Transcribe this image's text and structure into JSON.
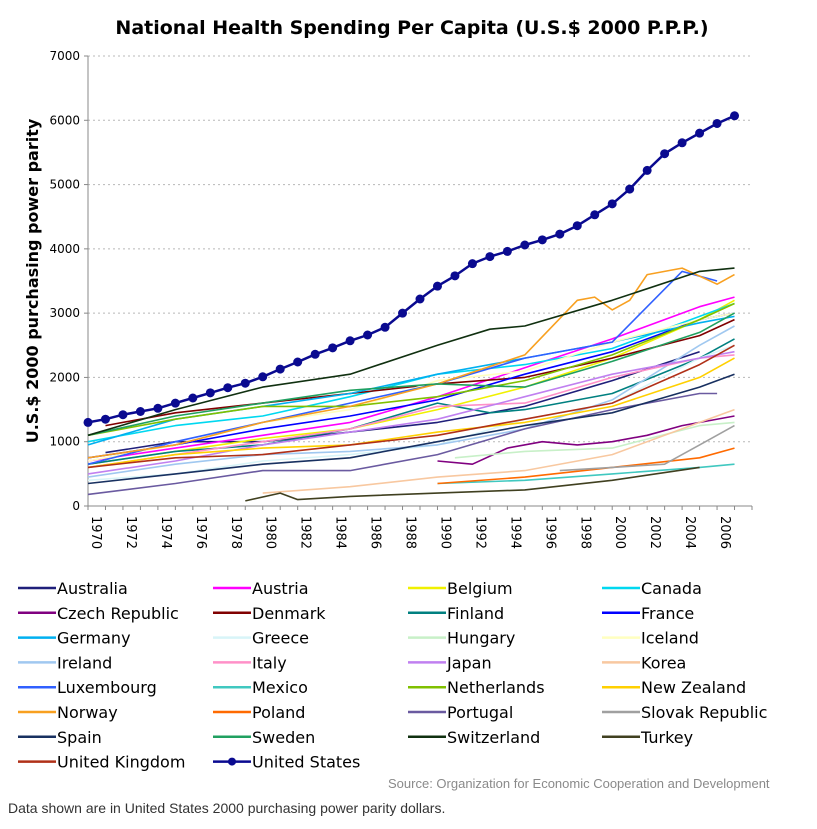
{
  "chart_data": {
    "type": "line",
    "title": "National Health Spending Per Capita (U.S.$ 2000 P.P.P.)",
    "xlabel": "",
    "ylabel": "U.S.$ 2000 purchasing power parity",
    "xlim": [
      1970,
      2008
    ],
    "ylim": [
      0,
      7000
    ],
    "yticks": [
      0,
      1000,
      2000,
      3000,
      4000,
      5000,
      6000,
      7000
    ],
    "xticks": [
      1970,
      1972,
      1974,
      1976,
      1978,
      1980,
      1982,
      1984,
      1986,
      1988,
      1990,
      1992,
      1994,
      1996,
      1998,
      2000,
      2002,
      2004,
      2006
    ],
    "grid": "horizontal dotted",
    "legend_position": "bottom",
    "series": [
      {
        "name": "Australia",
        "color": "#1f1f7a",
        "x": [
          1971,
          1975,
          1980,
          1985,
          1990,
          1995,
          2000,
          2005
        ],
        "y": [
          830,
          1000,
          1000,
          1150,
          1300,
          1550,
          1950,
          2400
        ]
      },
      {
        "name": "Austria",
        "color": "#ff00ff",
        "x": [
          1970,
          1975,
          1980,
          1985,
          1990,
          1995,
          2000,
          2005,
          2007
        ],
        "y": [
          700,
          900,
          1100,
          1300,
          1700,
          2150,
          2600,
          3100,
          3250
        ]
      },
      {
        "name": "Belgium",
        "color": "#f0f000",
        "x": [
          1970,
          1975,
          1980,
          1985,
          1990,
          1995,
          2000,
          2005,
          2007
        ],
        "y": [
          650,
          850,
          1050,
          1200,
          1500,
          1850,
          2300,
          2900,
          3200
        ]
      },
      {
        "name": "Canada",
        "color": "#00d8f0",
        "x": [
          1970,
          1975,
          1980,
          1985,
          1990,
          1995,
          2000,
          2005,
          2007
        ],
        "y": [
          1000,
          1250,
          1400,
          1700,
          2050,
          2200,
          2450,
          2950,
          3150
        ]
      },
      {
        "name": "Czech Republic",
        "color": "#800080",
        "x": [
          1990,
          1992,
          1994,
          1996,
          1998,
          2000,
          2002,
          2004,
          2007
        ],
        "y": [
          700,
          650,
          900,
          1000,
          950,
          1000,
          1100,
          1250,
          1400
        ]
      },
      {
        "name": "Denmark",
        "color": "#800000",
        "x": [
          1971,
          1975,
          1980,
          1985,
          1990,
          1995,
          2000,
          2005,
          2007
        ],
        "y": [
          1250,
          1450,
          1600,
          1750,
          1900,
          2000,
          2300,
          2650,
          2900
        ]
      },
      {
        "name": "Finland",
        "color": "#008080",
        "x": [
          1970,
          1975,
          1980,
          1985,
          1990,
          1993,
          1995,
          2000,
          2005,
          2007
        ],
        "y": [
          650,
          850,
          950,
          1200,
          1600,
          1450,
          1500,
          1750,
          2300,
          2600
        ]
      },
      {
        "name": "France",
        "color": "#0000ff",
        "x": [
          1970,
          1975,
          1980,
          1985,
          1990,
          1995,
          2000,
          2005,
          2007
        ],
        "y": [
          750,
          950,
          1200,
          1400,
          1650,
          2050,
          2400,
          2900,
          3000
        ]
      },
      {
        "name": "Germany",
        "color": "#00b0f0",
        "x": [
          1970,
          1975,
          1980,
          1985,
          1990,
          1995,
          2000,
          2005,
          2007
        ],
        "y": [
          950,
          1350,
          1550,
          1750,
          2050,
          2300,
          2550,
          2850,
          2950
        ]
      },
      {
        "name": "Greece",
        "color": "#d8f4f8",
        "x": [
          1970,
          1975,
          1980,
          1985,
          1990,
          1995,
          2000,
          2005,
          2007
        ],
        "y": [
          400,
          500,
          700,
          800,
          950,
          1350,
          1600,
          2300,
          2500
        ]
      },
      {
        "name": "Hungary",
        "color": "#c8f0c8",
        "x": [
          1991,
          1995,
          2000,
          2005,
          2007
        ],
        "y": [
          750,
          850,
          900,
          1250,
          1300
        ]
      },
      {
        "name": "Iceland",
        "color": "#ffffc0",
        "x": [
          1970,
          1975,
          1980,
          1985,
          1990,
          1995,
          2000,
          2005,
          2007
        ],
        "y": [
          700,
          950,
          1300,
          1500,
          1950,
          2100,
          2550,
          2900,
          3000
        ]
      },
      {
        "name": "Ireland",
        "color": "#a0c8f0",
        "x": [
          1970,
          1975,
          1980,
          1985,
          1990,
          1995,
          2000,
          2005,
          2007
        ],
        "y": [
          450,
          650,
          800,
          850,
          950,
          1200,
          1650,
          2500,
          2800
        ]
      },
      {
        "name": "Italy",
        "color": "#ff90c8",
        "x": [
          1970,
          1975,
          1980,
          1985,
          1990,
          1995,
          2000,
          2005,
          2007
        ],
        "y": [
          600,
          800,
          1000,
          1200,
          1550,
          1600,
          2000,
          2300,
          2350
        ]
      },
      {
        "name": "Japan",
        "color": "#c080f0",
        "x": [
          1970,
          1975,
          1980,
          1985,
          1990,
          1995,
          2000,
          2005,
          2007
        ],
        "y": [
          500,
          700,
          950,
          1150,
          1350,
          1700,
          2050,
          2300,
          2400
        ]
      },
      {
        "name": "Korea",
        "color": "#f8c8a0",
        "x": [
          1980,
          1985,
          1990,
          1995,
          2000,
          2005,
          2007
        ],
        "y": [
          200,
          300,
          450,
          550,
          800,
          1300,
          1500
        ]
      },
      {
        "name": "Luxembourg",
        "color": "#3060ff",
        "x": [
          1970,
          1975,
          1980,
          1985,
          1990,
          1995,
          2000,
          2004,
          2006
        ],
        "y": [
          650,
          1000,
          1300,
          1600,
          1900,
          2300,
          2550,
          3650,
          3500
        ]
      },
      {
        "name": "Mexico",
        "color": "#40c8c0",
        "x": [
          1990,
          1995,
          2000,
          2005,
          2007
        ],
        "y": [
          350,
          400,
          500,
          600,
          650
        ]
      },
      {
        "name": "Netherlands",
        "color": "#80c000",
        "x": [
          1970,
          1975,
          1980,
          1985,
          1990,
          1995,
          2000,
          2005,
          2007
        ],
        "y": [
          1100,
          1350,
          1550,
          1550,
          1700,
          1950,
          2350,
          2900,
          3150
        ]
      },
      {
        "name": "New Zealand",
        "color": "#ffd000",
        "x": [
          1970,
          1975,
          1980,
          1985,
          1990,
          1995,
          2000,
          2005,
          2007
        ],
        "y": [
          600,
          800,
          900,
          950,
          1150,
          1300,
          1550,
          2000,
          2300
        ]
      },
      {
        "name": "Norway",
        "color": "#f8a020",
        "x": [
          1970,
          1975,
          1980,
          1985,
          1990,
          1995,
          1998,
          1999,
          2000,
          2001,
          2002,
          2004,
          2006,
          2007
        ],
        "y": [
          750,
          950,
          1300,
          1550,
          1900,
          2350,
          3200,
          3250,
          3050,
          3200,
          3600,
          3700,
          3450,
          3600
        ]
      },
      {
        "name": "Poland",
        "color": "#ff6a00",
        "x": [
          1990,
          1995,
          2000,
          2005,
          2007
        ],
        "y": [
          350,
          450,
          600,
          750,
          900
        ]
      },
      {
        "name": "Portugal",
        "color": "#6a5aa0",
        "x": [
          1970,
          1975,
          1980,
          1985,
          1990,
          1995,
          2000,
          2005,
          2006
        ],
        "y": [
          180,
          350,
          550,
          550,
          800,
          1200,
          1500,
          1750,
          1750
        ]
      },
      {
        "name": "Slovak Republic",
        "color": "#a0a0a0",
        "x": [
          1997,
          2000,
          2003,
          2005,
          2007
        ],
        "y": [
          550,
          600,
          650,
          950,
          1250
        ]
      },
      {
        "name": "Spain",
        "color": "#183060",
        "x": [
          1970,
          1975,
          1980,
          1985,
          1990,
          1995,
          2000,
          2005,
          2007
        ],
        "y": [
          350,
          500,
          650,
          750,
          1000,
          1250,
          1450,
          1850,
          2050
        ]
      },
      {
        "name": "Sweden",
        "color": "#20a060",
        "x": [
          1970,
          1975,
          1980,
          1985,
          1990,
          1995,
          2000,
          2005,
          2007
        ],
        "y": [
          1100,
          1400,
          1600,
          1800,
          1900,
          1850,
          2250,
          2700,
          3000
        ]
      },
      {
        "name": "Switzerland",
        "color": "#103010",
        "x": [
          1970,
          1975,
          1980,
          1985,
          1990,
          1993,
          1995,
          2000,
          2005,
          2007
        ],
        "y": [
          1100,
          1500,
          1850,
          2050,
          2500,
          2750,
          2800,
          3200,
          3650,
          3700
        ]
      },
      {
        "name": "Turkey",
        "color": "#404020",
        "x": [
          1979,
          1981,
          1982,
          1985,
          1990,
          1995,
          2000,
          2005
        ],
        "y": [
          80,
          200,
          100,
          150,
          200,
          250,
          400,
          600
        ]
      },
      {
        "name": "United Kingdom",
        "color": "#b03018",
        "x": [
          1970,
          1975,
          1980,
          1985,
          1990,
          1995,
          2000,
          2005,
          2007
        ],
        "y": [
          600,
          750,
          800,
          950,
          1100,
          1350,
          1600,
          2200,
          2500
        ]
      },
      {
        "name": "United States",
        "color": "#0a0a90",
        "markers": true,
        "x": [
          1970,
          1971,
          1972,
          1973,
          1974,
          1975,
          1976,
          1977,
          1978,
          1979,
          1980,
          1981,
          1982,
          1983,
          1984,
          1985,
          1986,
          1987,
          1988,
          1989,
          1990,
          1991,
          1992,
          1993,
          1994,
          1995,
          1996,
          1997,
          1998,
          1999,
          2000,
          2001,
          2002,
          2003,
          2004,
          2005,
          2006,
          2007
        ],
        "y": [
          1300,
          1350,
          1420,
          1470,
          1520,
          1600,
          1680,
          1760,
          1840,
          1910,
          2010,
          2130,
          2240,
          2360,
          2460,
          2570,
          2660,
          2780,
          3000,
          3220,
          3420,
          3580,
          3770,
          3880,
          3960,
          4060,
          4140,
          4230,
          4360,
          4530,
          4700,
          4930,
          5220,
          5480,
          5650,
          5800,
          5950,
          6070
        ]
      }
    ]
  },
  "source": "Source: Organization for Economic Cooperation and Development",
  "caption": "Data shown are in United States 2000 purchasing power parity dollars."
}
